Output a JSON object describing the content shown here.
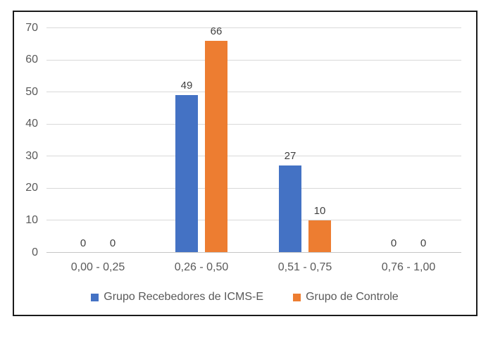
{
  "chart_data": {
    "type": "bar",
    "title": "",
    "categories": [
      "0,00 - 0,25",
      "0,26 - 0,50",
      "0,51 - 0,75",
      "0,76 - 1,00"
    ],
    "series": [
      {
        "name": "Grupo Recebedores de ICMS-E",
        "color": "#4472C4",
        "values": [
          0,
          49,
          27,
          0
        ]
      },
      {
        "name": "Grupo de Controle",
        "color": "#ED7D31",
        "values": [
          0,
          66,
          10,
          0
        ]
      }
    ],
    "y_ticks": [
      0,
      10,
      20,
      30,
      40,
      50,
      60,
      70
    ],
    "ylim": [
      0,
      70
    ],
    "grid": true,
    "data_labels": true,
    "legend_position": "bottom"
  },
  "colors": {
    "background": "#FFFFFF",
    "frame_border": "#1A1A1A",
    "gridline": "#D9D9D9",
    "axis_text": "#595959",
    "data_label_text": "#404040",
    "series_blue": "#4472C4",
    "series_orange": "#ED7D31"
  }
}
